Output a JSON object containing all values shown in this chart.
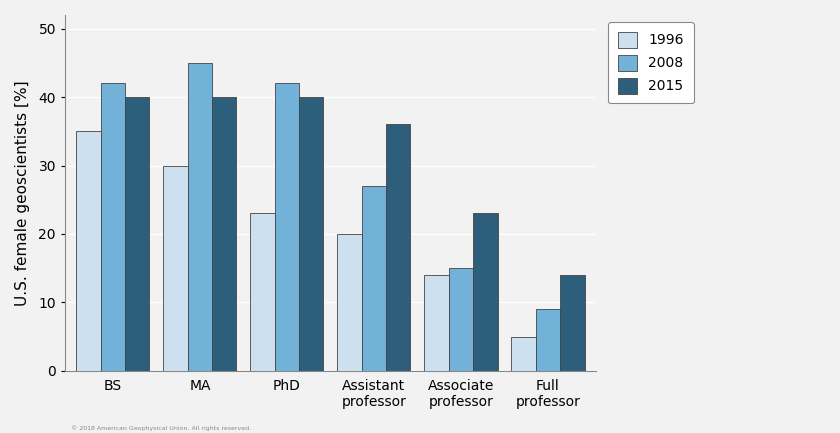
{
  "categories": [
    "BS",
    "MA",
    "PhD",
    "Assistant\nprofessor",
    "Associate\nprofessor",
    "Full\nprofessor"
  ],
  "years": [
    "1996",
    "2008",
    "2015"
  ],
  "values": {
    "1996": [
      35,
      30,
      23,
      20,
      14,
      5
    ],
    "2008": [
      42,
      45,
      42,
      27,
      15,
      9
    ],
    "2015": [
      40,
      40,
      40,
      36,
      23,
      14
    ]
  },
  "colors": {
    "1996": "#cde0f0",
    "2008": "#72b2d8",
    "2015": "#2d5f7c"
  },
  "ylabel": "U.S. female geoscientists [%]",
  "ylim": [
    0,
    52
  ],
  "yticks": [
    0,
    10,
    20,
    30,
    40,
    50
  ],
  "bar_width": 0.28,
  "background_color": "#f2f2f2",
  "plot_bg_color": "#f2f2f2",
  "grid_color": "#ffffff",
  "legend_fontsize": 10,
  "ylabel_fontsize": 11,
  "tick_fontsize": 10,
  "edgecolor": "#444444",
  "copyright": "© 2018 American Geophysical Union. All rights reserved."
}
